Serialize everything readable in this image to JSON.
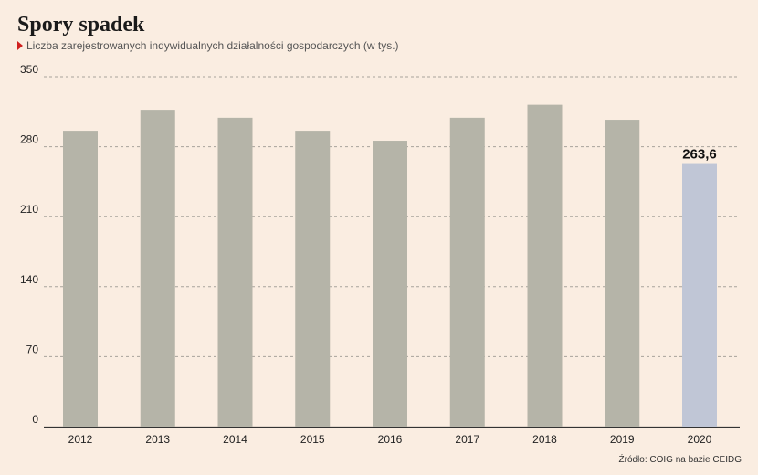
{
  "header": {
    "title": "Spory spadek",
    "subtitle": "Liczba zarejestrowanych indywidualnych działalności gospodarczych (w tys.)"
  },
  "footer": {
    "source": "Źródło: COIG na bazie CEIDG"
  },
  "colors": {
    "background": "#faede1",
    "bar": "#b5b4a8",
    "highlight_bar": "#c0c6d6",
    "grid": "#a8a39c",
    "marker": "#d0201e"
  },
  "chart_data": {
    "type": "bar",
    "categories": [
      "2012",
      "2013",
      "2014",
      "2015",
      "2016",
      "2017",
      "2018",
      "2019",
      "2020"
    ],
    "values": [
      296,
      317,
      309,
      296,
      286,
      309,
      322,
      307,
      263.6
    ],
    "highlight_index": 8,
    "highlight_label": "263,6",
    "ylim": [
      0,
      350
    ],
    "yticks": [
      0,
      70,
      140,
      210,
      280,
      350
    ],
    "grid": true
  }
}
